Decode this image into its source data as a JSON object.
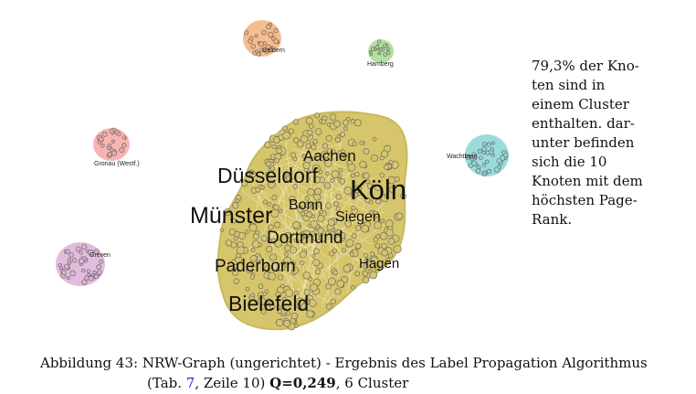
{
  "graph": {
    "clusters": [
      {
        "name": "main",
        "color": "#d6c56a",
        "labels": [
          "Köln",
          "Düsseldorf",
          "Münster",
          "Aachen",
          "Bonn",
          "Siegen",
          "Dortmund",
          "Paderborn",
          "Hagen",
          "Bielefeld"
        ]
      },
      {
        "name": "orange",
        "color": "#f4b27a",
        "labels": [
          "Geldern"
        ]
      },
      {
        "name": "green",
        "color": "#a8dd95",
        "labels": [
          "Hamberg"
        ]
      },
      {
        "name": "red",
        "color": "#f6a8a4",
        "labels": [
          "Gronau (Westf.)"
        ]
      },
      {
        "name": "cyan",
        "color": "#8fd8d6",
        "labels": [
          "Wachtberg"
        ]
      },
      {
        "name": "purple",
        "color": "#ddb0d6",
        "labels": [
          "Greven"
        ]
      }
    ],
    "node_stroke": "#6b6b6b"
  },
  "side_note": {
    "lines": [
      "79,3% der Kno-",
      "ten sind in",
      "einem Cluster",
      "enthalten. dar-",
      "unter befinden",
      "sich die 10",
      "Knoten mit dem",
      "höchsten Page-",
      "Rank."
    ]
  },
  "caption": {
    "prefix": "Abbildung 43: NRW-Graph (ungerichtet) - Ergebnis des Label Propagation Algorithmus",
    "line2_start": "(Tab. ",
    "table_ref": "7",
    "line2_mid": ", Zeile 10) ",
    "q_value": "Q=0,249",
    "line2_end": ", 6 Cluster",
    "ref_color": "#2233cc"
  }
}
